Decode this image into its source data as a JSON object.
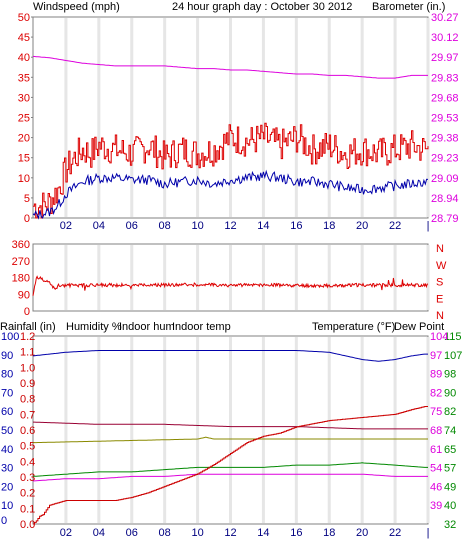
{
  "title": "24 hour graph day : October 30 2012",
  "colors": {
    "frame": "#808080",
    "grid": "#e6e6e6",
    "windspeed": "#dd0000",
    "wind_avg": "#0000aa",
    "barometer": "#dd00dd",
    "direction": "#dd0000",
    "rainfall": "#cc0000",
    "humidity": "#0000aa",
    "indoor_hum": "#8a8a00",
    "indoor_temp": "#990033",
    "temperature": "#008800",
    "dew_point": "#dd00dd",
    "black": "#000000"
  },
  "x_ticks": [
    "02",
    "04",
    "06",
    "08",
    "10",
    "12",
    "14",
    "16",
    "18",
    "20",
    "22",
    "|"
  ],
  "chart_data": [
    {
      "type": "line",
      "left_axis": {
        "label": "Windspeed (mph)",
        "ticks": [
          "0",
          "5",
          "10",
          "15",
          "20",
          "25",
          "30",
          "35",
          "40",
          "45",
          "50"
        ],
        "range": [
          0,
          50
        ]
      },
      "right_axis": {
        "label": "Barometer (in.)",
        "ticks": [
          "28.79",
          "28.94",
          "29.09",
          "29.23",
          "29.38",
          "29.53",
          "29.68",
          "29.83",
          "29.97",
          "30.12",
          "30.27"
        ],
        "range": [
          28.79,
          30.27
        ]
      },
      "x_range_hours": [
        0,
        24
      ],
      "series": [
        {
          "name": "Windspeed (mph)",
          "axis": "left",
          "x": [
            0,
            0.5,
            1,
            1.5,
            2,
            2.5,
            3,
            3.5,
            4,
            5,
            6,
            7,
            8,
            9,
            10,
            11,
            12,
            13,
            14,
            15,
            16,
            17,
            18,
            19,
            20,
            21,
            22,
            23,
            23.8
          ],
          "y": [
            3,
            3,
            4,
            7,
            12,
            15,
            17,
            16,
            18,
            17,
            16,
            18,
            15,
            17,
            16,
            17,
            20,
            19,
            20,
            18,
            20,
            17,
            18,
            16,
            17,
            16,
            17,
            18,
            17
          ]
        },
        {
          "x": [
            0,
            0.5,
            1,
            1.5,
            2,
            2.5,
            3,
            3.5,
            4,
            5,
            6,
            7,
            8,
            9,
            10,
            11,
            12,
            13,
            14,
            15,
            16,
            17,
            18,
            19,
            20,
            21,
            22,
            23,
            23.8
          ],
          "y": [
            0.5,
            1,
            1.5,
            3,
            6,
            7.5,
            9,
            9.5,
            10,
            10,
            9.5,
            9.5,
            8.5,
            9,
            9.5,
            8.5,
            9.5,
            10,
            10.5,
            10,
            9,
            9,
            8.5,
            7.5,
            7,
            7.5,
            8,
            8.5,
            9
          ],
          "axis": "left"
        },
        {
          "name": "Barometer (in.)",
          "axis": "right",
          "x": [
            0,
            1,
            2,
            3,
            4,
            5,
            6,
            7,
            8,
            9,
            10,
            11,
            12,
            13,
            14,
            15,
            16,
            17,
            18,
            19,
            20,
            21,
            22,
            23,
            23.8
          ],
          "y": [
            29.98,
            29.97,
            29.95,
            29.93,
            29.92,
            29.91,
            29.91,
            29.91,
            29.91,
            29.9,
            29.89,
            29.89,
            29.88,
            29.88,
            29.87,
            29.86,
            29.85,
            29.85,
            29.84,
            29.84,
            29.83,
            29.82,
            29.82,
            29.84,
            29.84
          ]
        }
      ]
    },
    {
      "type": "line",
      "left_axis": {
        "ticks": [
          "0",
          "90",
          "180",
          "270",
          "360"
        ],
        "range": [
          0,
          360
        ]
      },
      "right_axis": {
        "ticks": [
          "N",
          "E",
          "S",
          "W",
          "N"
        ]
      },
      "x_range_hours": [
        0,
        24
      ],
      "series": [
        {
          "axis": "left",
          "x": [
            0,
            0.2,
            0.5,
            1,
            1.3,
            1.6,
            2,
            4,
            6,
            8,
            10,
            12,
            14,
            16,
            18,
            20,
            22,
            23.8
          ],
          "y": [
            90,
            170,
            175,
            150,
            120,
            140,
            138,
            140,
            138,
            140,
            142,
            138,
            140,
            138,
            136,
            140,
            138,
            140
          ]
        }
      ]
    },
    {
      "type": "line",
      "left_axis_1": {
        "label": "Rainfall (in)",
        "ticks": [
          "0.0",
          "0.1",
          "0.2",
          "0.3",
          "0.4",
          "0.5",
          "0.6",
          "0.7",
          "0.8",
          "0.9",
          "1.0",
          "1.1",
          "1.2"
        ],
        "range": [
          0,
          1.2
        ]
      },
      "left_axis_2": {
        "label": "Humidity %",
        "ticks": [
          "0",
          "10",
          "20",
          "30",
          "40",
          "50",
          "60",
          "70",
          "80",
          "90",
          "100"
        ],
        "range": [
          0,
          104
        ]
      },
      "right_axis_1": {
        "label": "Temperature (°F)",
        "ticks": [
          "32",
          "40",
          "49",
          "57",
          "65",
          "74",
          "82",
          "90",
          "98",
          "107",
          "115"
        ],
        "range": [
          32,
          115
        ]
      },
      "right_axis_2": {
        "label": "Dew Point",
        "ticks": [
          "39",
          "46",
          "54",
          "61",
          "68",
          "75",
          "82",
          "89",
          "97",
          "104"
        ],
        "range": [
          32,
          104
        ]
      },
      "labels": {
        "indoor_hum": "Indoor hum",
        "indoor_temp": "Indoor temp"
      },
      "x_range_hours": [
        0,
        24
      ],
      "series": [
        {
          "name": "Humidity %",
          "axis": "humidity",
          "x": [
            0,
            2,
            4,
            6,
            8,
            10,
            12,
            14,
            16,
            18,
            20,
            21,
            22,
            23,
            23.8
          ],
          "y": [
            93,
            95,
            96,
            96,
            96,
            96,
            96,
            96,
            96,
            95,
            91,
            90,
            91,
            93,
            94
          ]
        },
        {
          "name": "Indoor hum",
          "axis": "humidity",
          "x": [
            0,
            5,
            10,
            10.5,
            11,
            16,
            20,
            23.8
          ],
          "y": [
            45,
            46,
            47,
            48,
            47,
            47,
            47,
            47
          ]
        },
        {
          "name": "Indoor temp",
          "axis": "temperature",
          "x": [
            0,
            4,
            8,
            12,
            16,
            20,
            23.8
          ],
          "y": [
            77,
            76,
            76,
            75,
            75,
            74,
            74
          ]
        },
        {
          "name": "Temperature (°F)",
          "axis": "temperature",
          "x": [
            0,
            2,
            4,
            6,
            8,
            10,
            12,
            14,
            16,
            18,
            20,
            22,
            23.8
          ],
          "y": [
            53,
            54,
            55,
            55,
            56,
            57,
            57,
            57,
            58,
            58,
            59,
            58,
            57
          ]
        },
        {
          "name": "Dew Point",
          "axis": "temperature",
          "x": [
            0,
            2,
            4,
            6,
            8,
            10,
            12,
            14,
            16,
            18,
            20,
            22,
            23.8
          ],
          "y": [
            51,
            52,
            52,
            53,
            53,
            54,
            54,
            54,
            54,
            54,
            54,
            53,
            53
          ]
        },
        {
          "name": "Rainfall (in)",
          "axis": "rain",
          "x": [
            0,
            0.2,
            0.4,
            0.6,
            1,
            2,
            3,
            4,
            5,
            6,
            7,
            8,
            9,
            10,
            11,
            12,
            13,
            14,
            15,
            16,
            17,
            18,
            19,
            20,
            21,
            22,
            23,
            23.8
          ],
          "y": [
            0,
            0.02,
            0.05,
            0.06,
            0.12,
            0.15,
            0.15,
            0.15,
            0.15,
            0.17,
            0.2,
            0.24,
            0.28,
            0.32,
            0.38,
            0.45,
            0.52,
            0.56,
            0.58,
            0.62,
            0.64,
            0.66,
            0.67,
            0.68,
            0.69,
            0.7,
            0.73,
            0.75
          ]
        }
      ]
    }
  ]
}
